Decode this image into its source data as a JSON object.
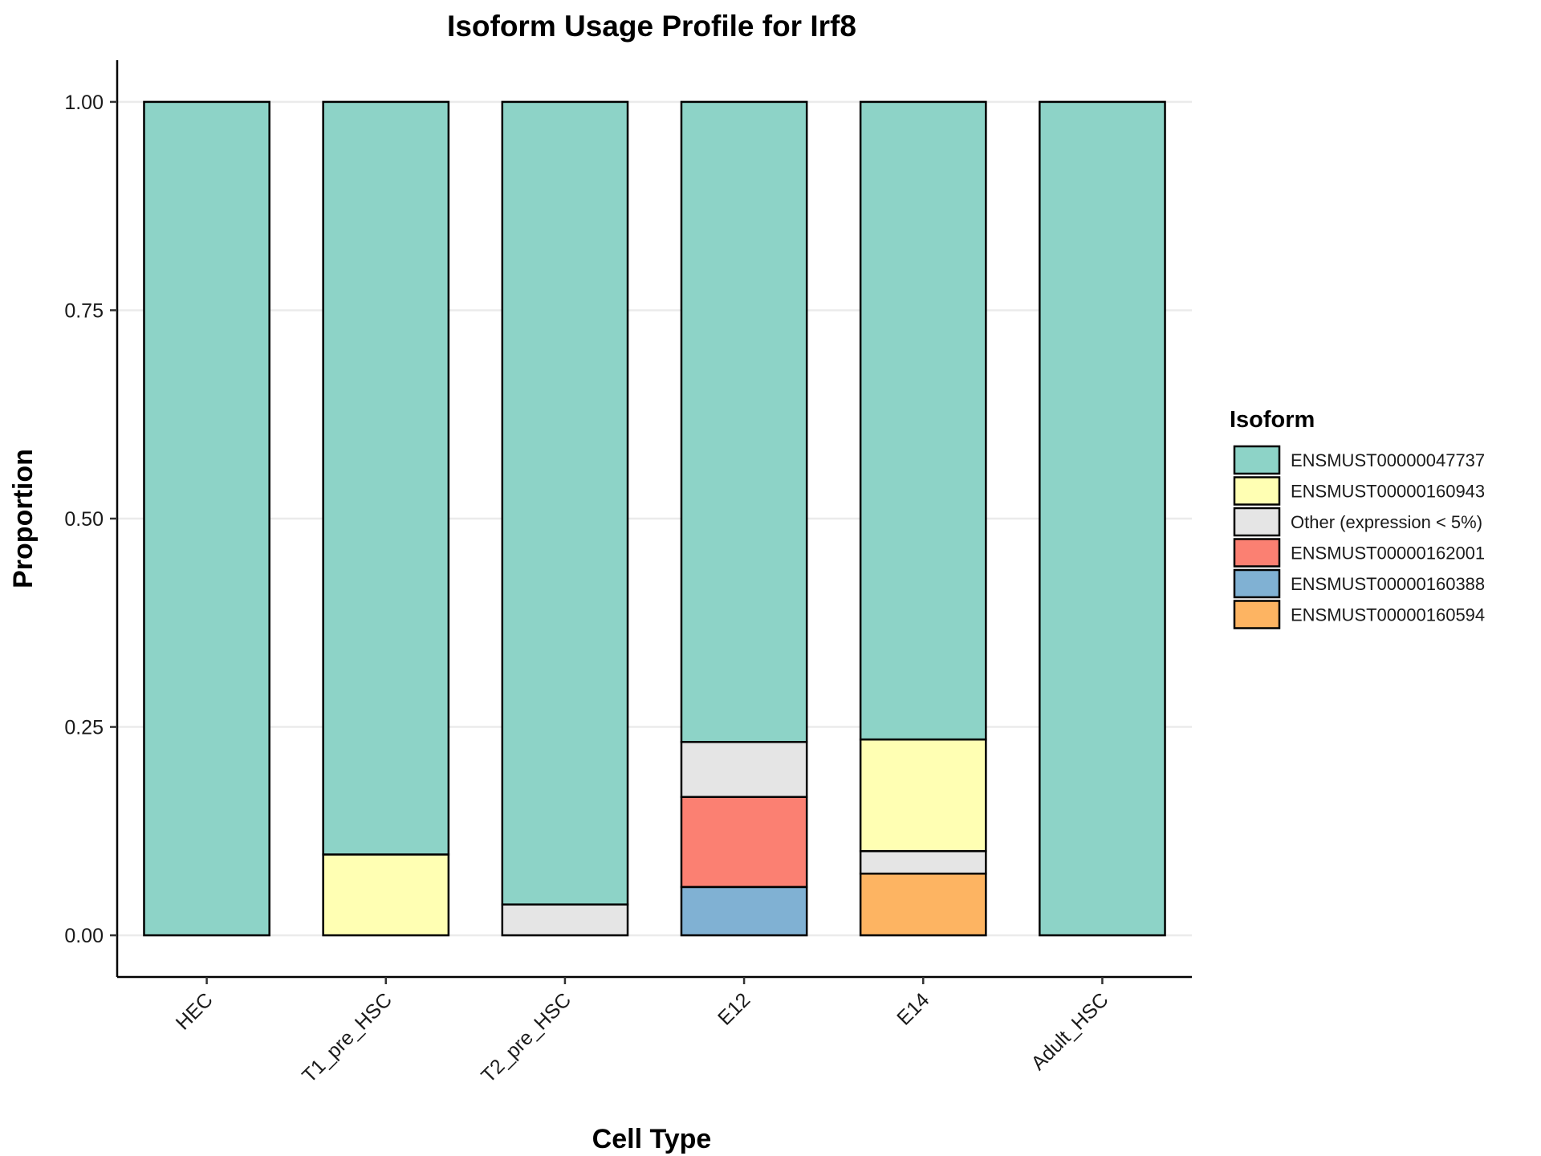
{
  "chart_data": {
    "type": "bar",
    "stacked": true,
    "title": "Isoform Usage Profile for Irf8",
    "xlabel": "Cell Type",
    "ylabel": "Proportion",
    "ylim": [
      -0.05,
      1.05
    ],
    "yticks": [
      "0.00",
      "0.25",
      "0.50",
      "0.75",
      "1.00"
    ],
    "ytick_values": [
      0,
      0.25,
      0.5,
      0.75,
      1.0
    ],
    "grid": "horizontal",
    "legend_title": "Isoform",
    "legend_position": "right",
    "categories": [
      "HEC",
      "T1_pre_HSC",
      "T2_pre_HSC",
      "E12",
      "E14",
      "Adult_HSC"
    ],
    "series": [
      {
        "name": "ENSMUST00000160594",
        "color": "#FDB462",
        "values": [
          0,
          0,
          0,
          0,
          0.074,
          0
        ]
      },
      {
        "name": "ENSMUST00000160388",
        "color": "#80B1D3",
        "values": [
          0,
          0,
          0,
          0.058,
          0,
          0
        ]
      },
      {
        "name": "ENSMUST00000162001",
        "color": "#FB8072",
        "values": [
          0,
          0,
          0,
          0.108,
          0,
          0
        ]
      },
      {
        "name": "Other (expression < 5%)",
        "color": "#E5E5E5",
        "values": [
          0,
          0,
          0.037,
          0.066,
          0.027,
          0
        ]
      },
      {
        "name": "ENSMUST00000160943",
        "color": "#FFFFB3",
        "values": [
          0,
          0.097,
          0,
          0,
          0.134,
          0
        ]
      },
      {
        "name": "ENSMUST00000047737",
        "color": "#8DD3C7",
        "values": [
          1.0,
          0.903,
          0.963,
          0.768,
          0.765,
          1.0
        ]
      }
    ],
    "legend_order": [
      "ENSMUST00000047737",
      "ENSMUST00000160943",
      "Other (expression < 5%)",
      "ENSMUST00000162001",
      "ENSMUST00000160388",
      "ENSMUST00000160594"
    ]
  }
}
